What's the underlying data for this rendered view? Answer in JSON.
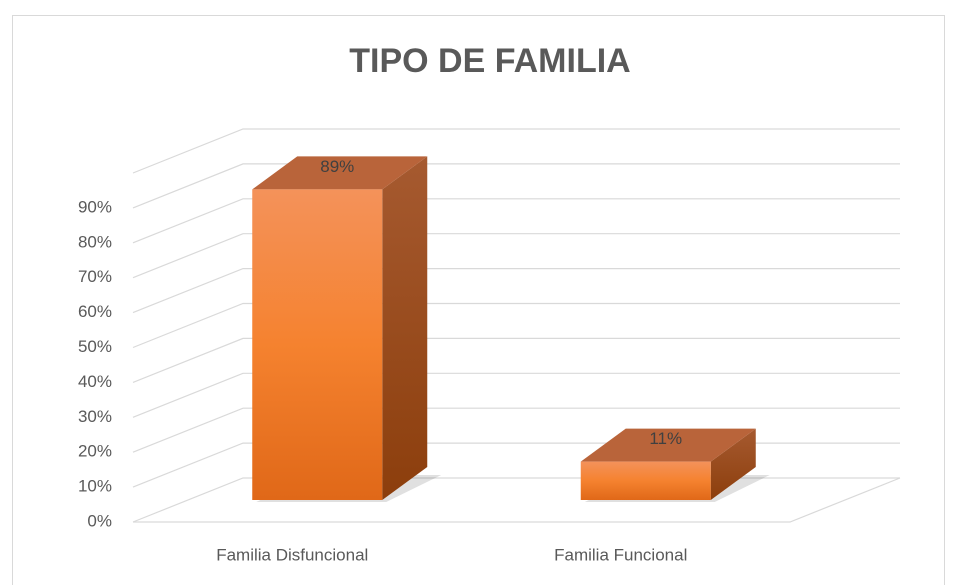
{
  "chart_data": {
    "type": "bar3d",
    "title": "TIPO DE FAMILIA",
    "categories": [
      "Familia Disfuncional",
      "Familia Funcional"
    ],
    "values": [
      89,
      11
    ],
    "value_labels": [
      "89%",
      "11%"
    ],
    "color": "#f5822f",
    "ylim": [
      0,
      100
    ],
    "yticks": [
      {
        "value": 0,
        "label": "0%"
      },
      {
        "value": 10,
        "label": "10%"
      },
      {
        "value": 20,
        "label": "20%"
      },
      {
        "value": 30,
        "label": "30%"
      },
      {
        "value": 40,
        "label": "40%"
      },
      {
        "value": 50,
        "label": "50%"
      },
      {
        "value": 60,
        "label": "60%"
      },
      {
        "value": 70,
        "label": "70%"
      },
      {
        "value": 80,
        "label": "80%"
      },
      {
        "value": 90,
        "label": "90%"
      }
    ],
    "grid": true
  }
}
